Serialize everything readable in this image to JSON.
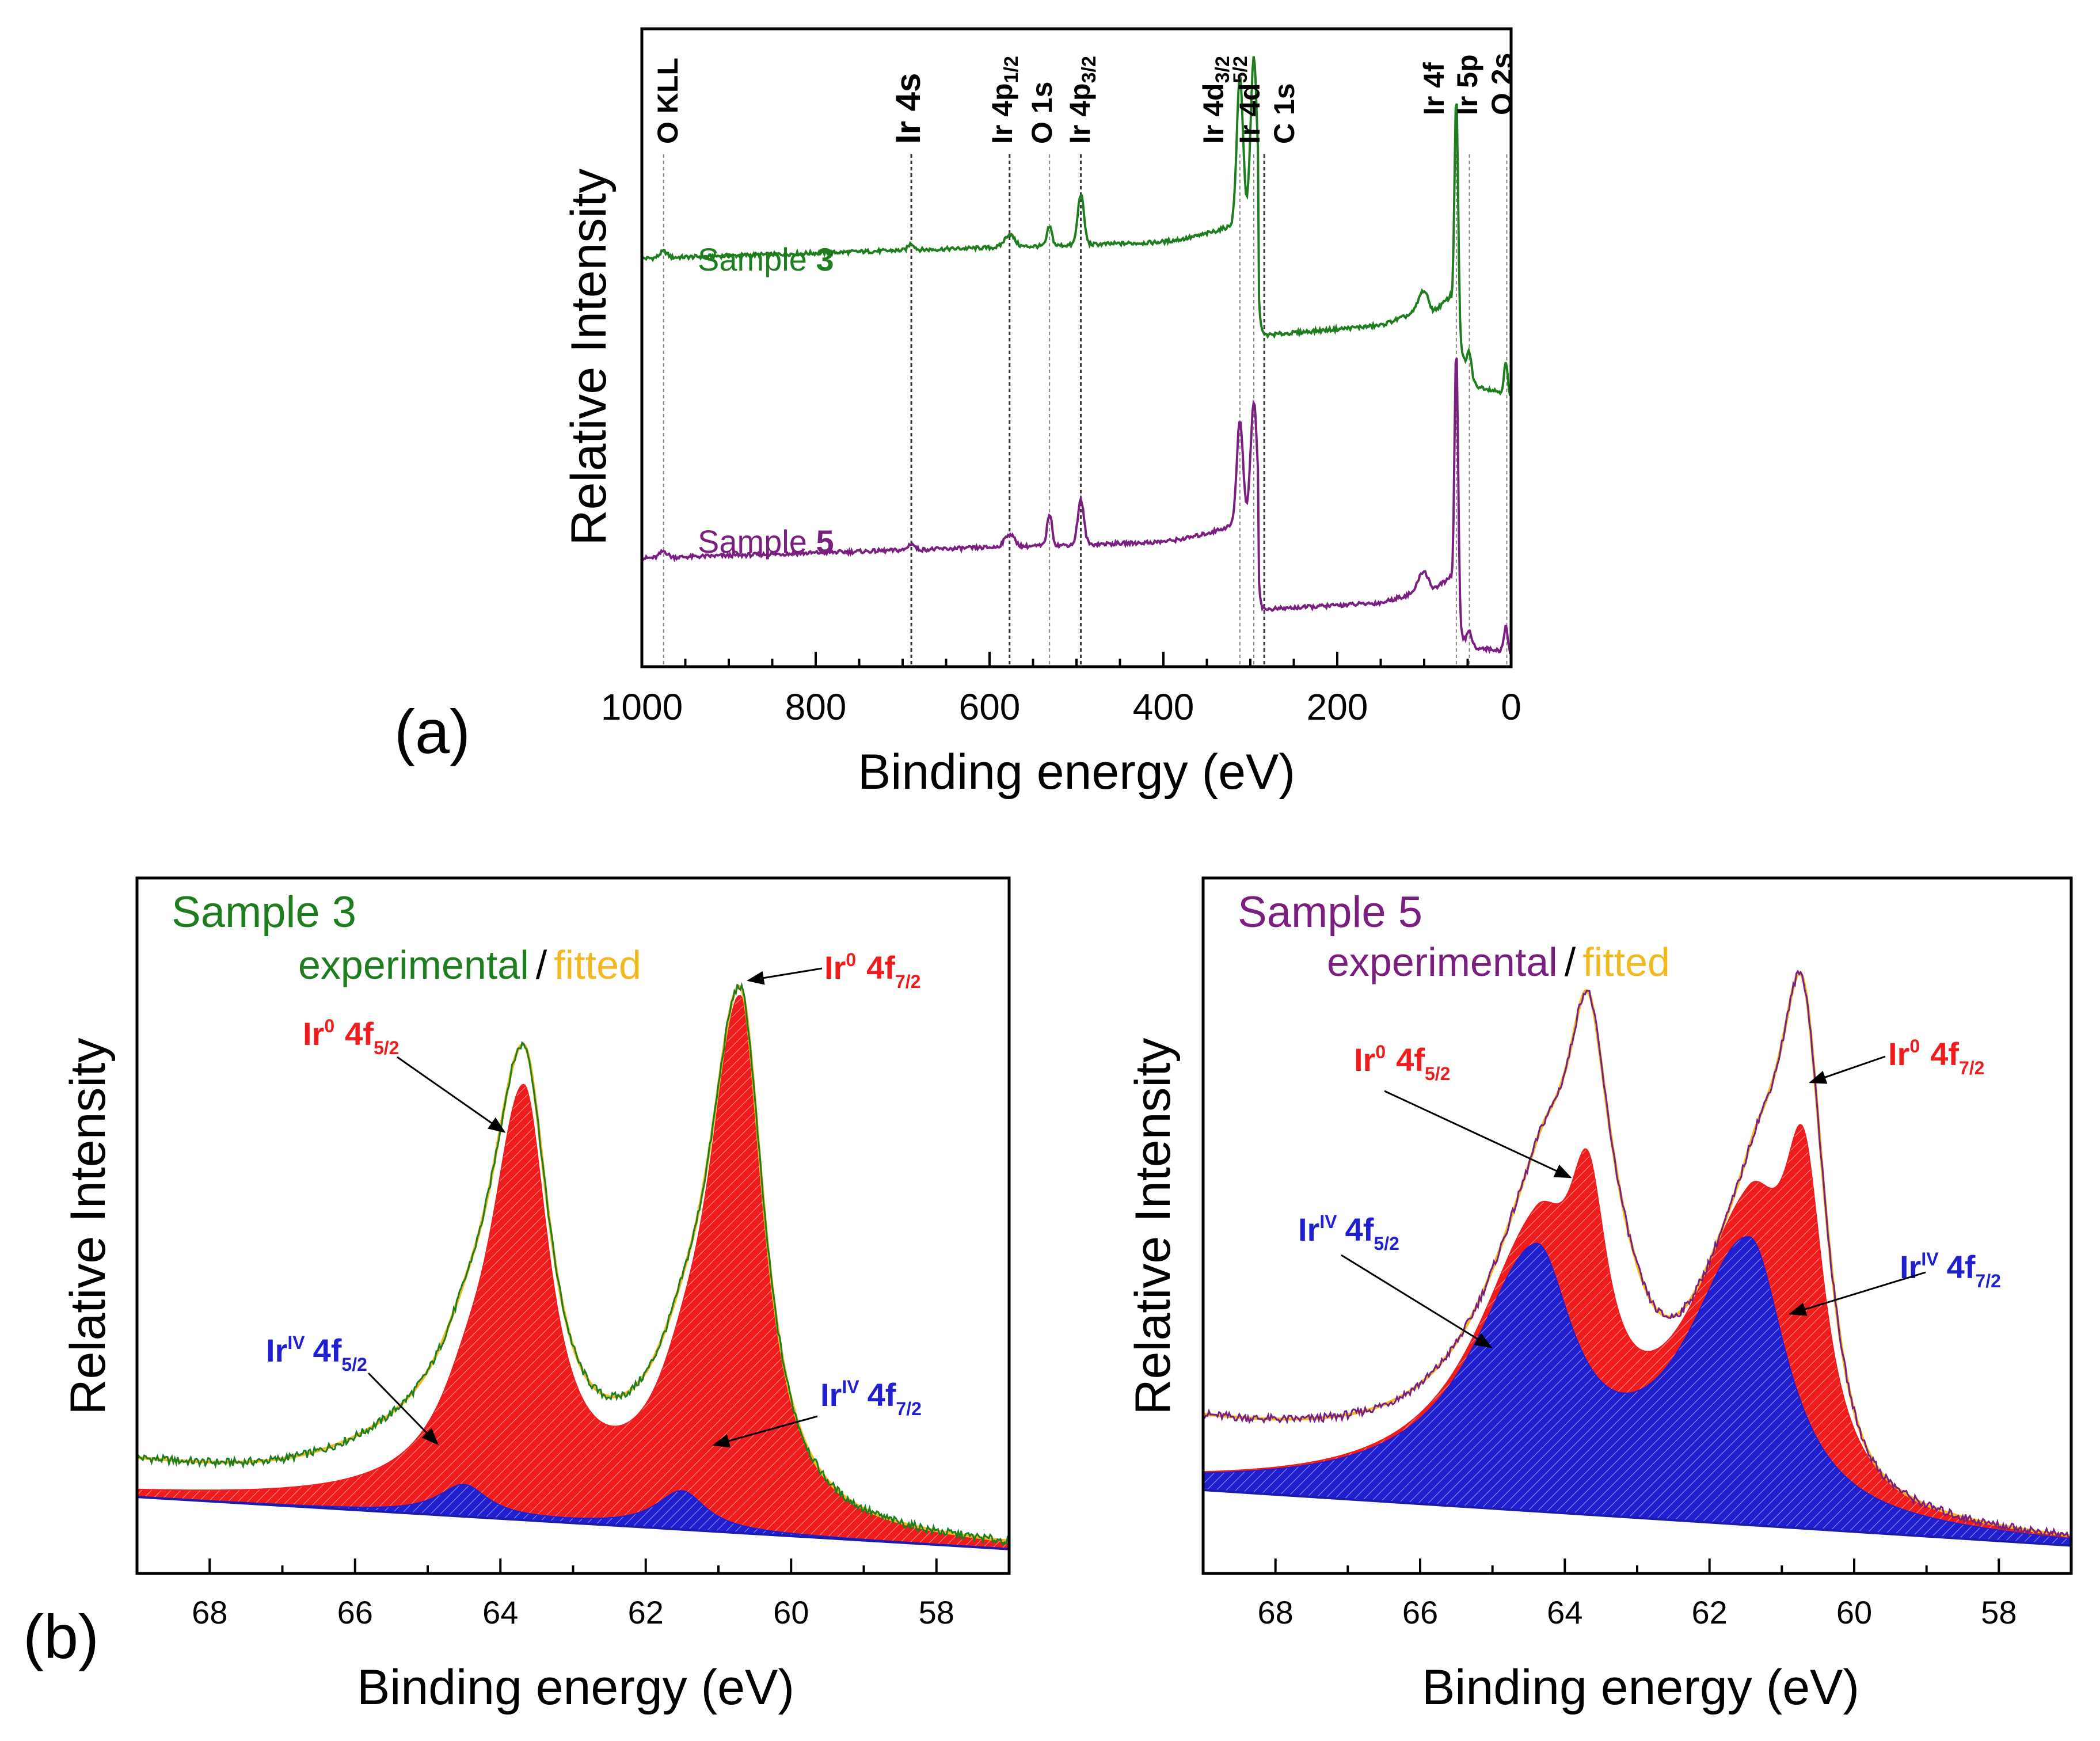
{
  "panel_labels": {
    "a": "(a)",
    "b": "(b)"
  },
  "colors": {
    "sample3": "#1e7d1e",
    "sample5": "#7a1f7f",
    "fitted": "#f2b81f",
    "ir0_fill": "#ee1c1c",
    "iriv_fill": "#1f1fd0",
    "background": "#1b1bb0",
    "ref_line": "#777777",
    "axis": "#000000"
  },
  "survey_peaks": {
    "o_kll": "O KLL",
    "ir4s": "Ir 4s",
    "ir4p12": {
      "base": "Ir 4p",
      "sub": "1/2"
    },
    "o1s": "O 1s",
    "ir4p32": {
      "base": "Ir 4p",
      "sub": "3/2"
    },
    "ir4d32": {
      "base": "Ir 4d",
      "sub": "3/2"
    },
    "ir4d52": {
      "base": "Ir 4d",
      "sub": "5/2"
    },
    "c1s": "C 1s",
    "ir4f": "Ir 4f",
    "ir5p": "Ir 5p",
    "o2s": "O 2s"
  },
  "annotations": {
    "ir_base": "Ir",
    "sup0": "0",
    "supIV": "IV",
    "orbital": "4f",
    "sub52": "5/2",
    "sub72": "7/2",
    "slash": "/"
  },
  "chart_data": [
    {
      "id": "survey",
      "type": "line",
      "title": "",
      "xlabel": "Binding energy (eV)",
      "ylabel": "Relative Intensity",
      "xlim": [
        1000,
        0
      ],
      "ylim": [
        0,
        1
      ],
      "x_ticks": [
        "1000",
        "800",
        "600",
        "400",
        "200",
        "0"
      ],
      "reference_lines_eV": [
        975,
        690,
        577,
        531,
        495,
        312,
        296,
        284,
        63,
        48,
        5
      ],
      "series": [
        {
          "name": "Sample 3",
          "label_text": "Sample ",
          "label_num": "3",
          "baseline": 0.64,
          "slope": 6e-05,
          "step_high": 0.86,
          "step_low": 0.52,
          "step_at": 290,
          "tail": [
            [
              280,
              0.52
            ],
            [
              150,
              0.535
            ],
            [
              100,
              0.56
            ],
            [
              90,
              0.555
            ],
            [
              70,
              0.58
            ],
            [
              60,
              0.5
            ],
            [
              40,
              0.44
            ],
            [
              10,
              0.43
            ],
            [
              0,
              0.42
            ]
          ],
          "peaks": [
            [
              975,
              0.01,
              6
            ],
            [
              690,
              0.01,
              5
            ],
            [
              577,
              0.02,
              8
            ],
            [
              531,
              0.03,
              4
            ],
            [
              495,
              0.08,
              5
            ],
            [
              312,
              0.23,
              5
            ],
            [
              296,
              0.25,
              5
            ],
            [
              101,
              0.03,
              8
            ],
            [
              63,
              0.37,
              3
            ],
            [
              48,
              0.03,
              3
            ],
            [
              6,
              0.05,
              3
            ]
          ]
        },
        {
          "name": "Sample 5",
          "label_text": "Sample ",
          "label_num": "5",
          "baseline": 0.17,
          "slope": 6e-05,
          "step_high": 0.37,
          "step_low": 0.09,
          "step_at": 290,
          "tail": [
            [
              280,
              0.09
            ],
            [
              150,
              0.1
            ],
            [
              100,
              0.12
            ],
            [
              90,
              0.12
            ],
            [
              70,
              0.14
            ],
            [
              60,
              0.05
            ],
            [
              40,
              0.03
            ],
            [
              10,
              0.025
            ],
            [
              0,
              0.02
            ]
          ],
          "peaks": [
            [
              975,
              0.01,
              6
            ],
            [
              690,
              0.01,
              5
            ],
            [
              577,
              0.02,
              8
            ],
            [
              531,
              0.05,
              4
            ],
            [
              495,
              0.07,
              5
            ],
            [
              312,
              0.16,
              5
            ],
            [
              296,
              0.18,
              5
            ],
            [
              101,
              0.03,
              8
            ],
            [
              63,
              0.42,
              3
            ],
            [
              48,
              0.02,
              3
            ],
            [
              6,
              0.04,
              3
            ]
          ]
        }
      ]
    },
    {
      "id": "ir4f_sample3",
      "type": "area",
      "title": "Sample 3",
      "xlabel": "Binding energy (eV)",
      "ylabel": "Relative Intensity",
      "xlim": [
        69,
        57
      ],
      "ylim": [
        0,
        1
      ],
      "x_ticks": [
        "68",
        "66",
        "64",
        "62",
        "60",
        "58"
      ],
      "legend": {
        "experimental": "experimental",
        "fitted": "fitted"
      },
      "background": {
        "x": [
          69,
          57
        ],
        "y": [
          0.11,
          0.035
        ]
      },
      "components": [
        {
          "name": "Ir0 4f5/2",
          "center": 63.68,
          "height": 0.59,
          "width": 0.42,
          "tail": 1.4
        },
        {
          "name": "Ir0 4f7/2",
          "center": 60.7,
          "height": 0.75,
          "width": 0.4,
          "tail": 1.4
        },
        {
          "name": "IrIV 4f5/2",
          "center": 64.5,
          "height": 0.045,
          "width": 0.4,
          "tail": 1.1
        },
        {
          "name": "IrIV 4f7/2",
          "center": 61.5,
          "height": 0.055,
          "width": 0.4,
          "tail": 1.1
        }
      ]
    },
    {
      "id": "ir4f_sample5",
      "type": "area",
      "title": "Sample 5",
      "xlabel": "Binding energy (eV)",
      "ylabel": "Relative Intensity",
      "xlim": [
        69,
        57
      ],
      "ylim": [
        0,
        1
      ],
      "x_ticks": [
        "68",
        "66",
        "64",
        "62",
        "60",
        "58"
      ],
      "legend": {
        "experimental": "experimental",
        "fitted": "fitted"
      },
      "background": {
        "x": [
          69,
          57
        ],
        "y": [
          0.12,
          0.04
        ]
      },
      "components": [
        {
          "name": "Ir0 4f5/2",
          "center": 63.68,
          "height": 0.3,
          "width": 0.32,
          "tail": 1.0
        },
        {
          "name": "Ir0 4f7/2",
          "center": 60.7,
          "height": 0.4,
          "width": 0.34,
          "tail": 1.0
        },
        {
          "name": "IrIV 4f5/2",
          "center": 64.4,
          "height": 0.34,
          "width": 0.62,
          "tail": 1.7
        },
        {
          "name": "IrIV 4f7/2",
          "center": 61.45,
          "height": 0.4,
          "width": 0.62,
          "tail": 1.7
        }
      ]
    }
  ]
}
